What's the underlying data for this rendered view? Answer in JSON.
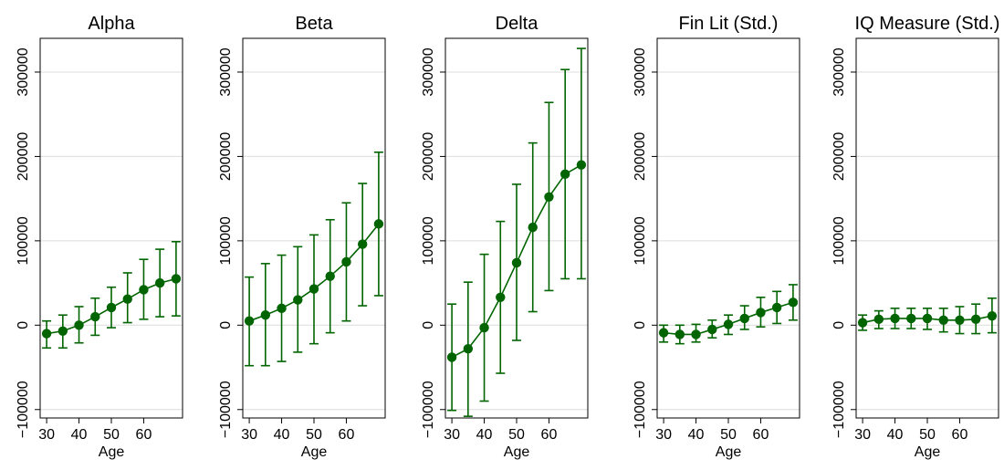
{
  "chart_data": [
    {
      "type": "line",
      "title": "Alpha",
      "xlabel": "Age",
      "ylabel": "",
      "x": [
        30,
        35,
        40,
        45,
        50,
        55,
        60,
        65,
        70
      ],
      "xticks": [
        "30",
        "40",
        "50",
        "60"
      ],
      "yticks": [
        "−100000",
        "0",
        "100000",
        "200000",
        "300000"
      ],
      "ylim": [
        -110000,
        340000
      ],
      "estimate": [
        -10000,
        -7000,
        0,
        10000,
        21000,
        31000,
        42000,
        50000,
        55000
      ],
      "ci_lower": [
        -27000,
        -27000,
        -21000,
        -12000,
        -3000,
        3000,
        7000,
        10000,
        11000
      ],
      "ci_upper": [
        5000,
        12000,
        22000,
        32000,
        45000,
        62000,
        78000,
        90000,
        99000
      ]
    },
    {
      "type": "line",
      "title": "Beta",
      "xlabel": "Age",
      "ylabel": "",
      "x": [
        30,
        35,
        40,
        45,
        50,
        55,
        60,
        65,
        70
      ],
      "xticks": [
        "30",
        "40",
        "50",
        "60"
      ],
      "yticks": [
        "−100000",
        "0",
        "100000",
        "200000",
        "300000"
      ],
      "ylim": [
        -110000,
        340000
      ],
      "estimate": [
        5000,
        12000,
        20000,
        30000,
        43000,
        58000,
        75000,
        96000,
        120000
      ],
      "ci_lower": [
        -48000,
        -48000,
        -43000,
        -32000,
        -22000,
        -9000,
        5000,
        23000,
        35000
      ],
      "ci_upper": [
        57000,
        73000,
        83000,
        93000,
        107000,
        125000,
        145000,
        168000,
        205000
      ]
    },
    {
      "type": "line",
      "title": "Delta",
      "xlabel": "Age",
      "ylabel": "",
      "x": [
        30,
        35,
        40,
        45,
        50,
        55,
        60,
        65,
        70
      ],
      "xticks": [
        "30",
        "40",
        "50",
        "60"
      ],
      "yticks": [
        "−100000",
        "0",
        "100000",
        "200000",
        "300000"
      ],
      "ylim": [
        -110000,
        340000
      ],
      "estimate": [
        -38000,
        -28000,
        -3000,
        33000,
        74000,
        116000,
        152000,
        179000,
        190000
      ],
      "ci_lower": [
        -101000,
        -108000,
        -90000,
        -57000,
        -18000,
        16000,
        41000,
        55000,
        55000
      ],
      "ci_upper": [
        25000,
        51000,
        84000,
        123000,
        167000,
        216000,
        264000,
        303000,
        328000
      ]
    },
    {
      "type": "line",
      "title": "Fin Lit (Std.)",
      "xlabel": "Age",
      "ylabel": "",
      "x": [
        30,
        35,
        40,
        45,
        50,
        55,
        60,
        65,
        70
      ],
      "xticks": [
        "30",
        "40",
        "50",
        "60"
      ],
      "yticks": [
        "−100000",
        "0",
        "100000",
        "200000",
        "300000"
      ],
      "ylim": [
        -110000,
        340000
      ],
      "estimate": [
        -9000,
        -11000,
        -11000,
        -5000,
        1000,
        8000,
        15000,
        21000,
        27000
      ],
      "ci_lower": [
        -20000,
        -22000,
        -20000,
        -15000,
        -11000,
        -5000,
        -2000,
        2000,
        6000
      ],
      "ci_upper": [
        0,
        0,
        1000,
        6000,
        12000,
        23000,
        33000,
        40000,
        48000
      ]
    },
    {
      "type": "line",
      "title": "IQ Measure (Std.)",
      "xlabel": "Age",
      "ylabel": "",
      "x": [
        30,
        35,
        40,
        45,
        50,
        55,
        60,
        65,
        70
      ],
      "xticks": [
        "30",
        "40",
        "50",
        "60"
      ],
      "yticks": [
        "−100000",
        "0",
        "100000",
        "200000",
        "300000"
      ],
      "ylim": [
        -110000,
        340000
      ],
      "estimate": [
        3000,
        7000,
        8000,
        8000,
        8000,
        6000,
        6000,
        7000,
        11000
      ],
      "ci_lower": [
        -6000,
        -4000,
        -4000,
        -4000,
        -5000,
        -8000,
        -10000,
        -10000,
        -9000
      ],
      "ci_upper": [
        12000,
        17000,
        20000,
        20000,
        20000,
        20000,
        22000,
        25000,
        32000
      ]
    }
  ],
  "colors": {
    "series": "#006400",
    "grid": "#dcdcdc",
    "frame": "#000000"
  }
}
